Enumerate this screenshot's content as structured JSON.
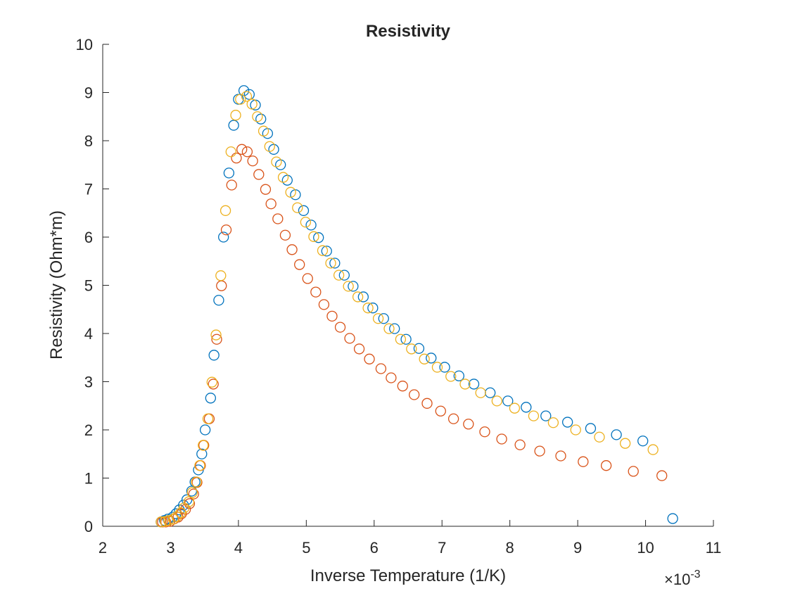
{
  "chart_data": {
    "type": "scatter",
    "title": "Resistivity",
    "x_label": "Inverse Temperature (1/K)",
    "y_label": "Resistivity (Ohm*m)",
    "x_multiplier": {
      "base": "×10",
      "exponent": "-3"
    },
    "xlim": [
      2,
      11
    ],
    "xticks": [
      2,
      3,
      4,
      5,
      6,
      7,
      8,
      9,
      10,
      11
    ],
    "ylim": [
      0,
      10
    ],
    "yticks": [
      0,
      1,
      2,
      3,
      4,
      5,
      6,
      7,
      8,
      9,
      10
    ],
    "marker": "circle-open",
    "series": [
      {
        "color": "#0072BD",
        "x": [
          10.4,
          9.96,
          9.57,
          9.19,
          8.85,
          8.53,
          8.24,
          7.97,
          7.71,
          7.47,
          7.25,
          7.04,
          6.84,
          6.66,
          6.47,
          6.3,
          6.14,
          5.98,
          5.84,
          5.69,
          5.56,
          5.42,
          5.3,
          5.18,
          5.07,
          4.96,
          4.84,
          4.72,
          4.62,
          4.52,
          4.43,
          4.33,
          4.25,
          4.16,
          4.08,
          4.0,
          3.93,
          3.86,
          3.78,
          3.71,
          3.64,
          3.59,
          3.51,
          3.46,
          3.41,
          3.36,
          3.31,
          3.24,
          3.19,
          3.13,
          3.08,
          3.03,
          2.96,
          2.91,
          2.86
        ],
        "values": [
          0.16,
          1.77,
          1.9,
          2.03,
          2.16,
          2.29,
          2.47,
          2.6,
          2.77,
          2.95,
          3.12,
          3.3,
          3.49,
          3.69,
          3.88,
          4.1,
          4.31,
          4.53,
          4.76,
          4.98,
          5.21,
          5.46,
          5.71,
          5.99,
          6.25,
          6.55,
          6.88,
          7.18,
          7.5,
          7.82,
          8.15,
          8.45,
          8.74,
          8.96,
          9.04,
          8.86,
          8.32,
          7.33,
          6.0,
          4.69,
          3.55,
          2.66,
          2.0,
          1.5,
          1.17,
          0.92,
          0.73,
          0.55,
          0.44,
          0.34,
          0.26,
          0.19,
          0.15,
          0.12,
          0.09
        ]
      },
      {
        "color": "#D95319",
        "x": [
          10.24,
          9.82,
          9.42,
          9.08,
          8.75,
          8.44,
          8.15,
          7.88,
          7.63,
          7.39,
          7.17,
          6.98,
          6.78,
          6.59,
          6.42,
          6.25,
          6.1,
          5.93,
          5.78,
          5.64,
          5.5,
          5.38,
          5.26,
          5.14,
          5.02,
          4.9,
          4.79,
          4.69,
          4.58,
          4.48,
          4.4,
          4.3,
          4.21,
          4.13,
          4.05,
          3.97,
          3.9,
          3.82,
          3.75,
          3.68,
          3.63,
          3.57,
          3.49,
          3.44,
          3.39,
          3.34,
          3.28,
          3.22,
          3.16,
          3.11,
          3.05,
          2.99,
          2.93,
          2.88
        ],
        "values": [
          1.05,
          1.14,
          1.26,
          1.34,
          1.46,
          1.56,
          1.69,
          1.81,
          1.96,
          2.12,
          2.23,
          2.39,
          2.55,
          2.73,
          2.91,
          3.08,
          3.27,
          3.47,
          3.68,
          3.9,
          4.13,
          4.36,
          4.6,
          4.86,
          5.14,
          5.43,
          5.74,
          6.04,
          6.38,
          6.69,
          6.99,
          7.3,
          7.58,
          7.77,
          7.82,
          7.64,
          7.08,
          6.15,
          4.99,
          3.88,
          2.95,
          2.23,
          1.68,
          1.26,
          0.91,
          0.67,
          0.47,
          0.35,
          0.26,
          0.19,
          0.15,
          0.1,
          0.09,
          0.09
        ]
      },
      {
        "color": "#EDB120",
        "x": [
          10.11,
          9.7,
          9.32,
          8.97,
          8.64,
          8.35,
          8.07,
          7.81,
          7.57,
          7.34,
          7.13,
          6.93,
          6.74,
          6.55,
          6.39,
          6.22,
          6.06,
          5.91,
          5.76,
          5.62,
          5.48,
          5.36,
          5.24,
          5.11,
          4.99,
          4.87,
          4.77,
          4.66,
          4.56,
          4.46,
          4.37,
          4.28,
          4.2,
          4.12,
          4.03,
          3.96,
          3.89,
          3.81,
          3.74,
          3.67,
          3.61,
          3.55,
          3.48,
          3.43,
          3.38,
          3.32,
          3.27,
          3.2,
          3.15,
          3.09,
          3.04,
          2.97,
          2.92,
          2.86
        ],
        "values": [
          1.59,
          1.72,
          1.85,
          2.0,
          2.15,
          2.29,
          2.45,
          2.6,
          2.77,
          2.95,
          3.11,
          3.3,
          3.47,
          3.68,
          3.88,
          4.1,
          4.31,
          4.53,
          4.76,
          4.98,
          5.21,
          5.46,
          5.72,
          6.01,
          6.31,
          6.61,
          6.93,
          7.24,
          7.56,
          7.88,
          8.2,
          8.5,
          8.76,
          8.92,
          8.86,
          8.53,
          7.77,
          6.55,
          5.2,
          3.97,
          2.99,
          2.23,
          1.68,
          1.26,
          0.92,
          0.7,
          0.51,
          0.38,
          0.28,
          0.2,
          0.15,
          0.12,
          0.1,
          0.09
        ]
      }
    ]
  }
}
